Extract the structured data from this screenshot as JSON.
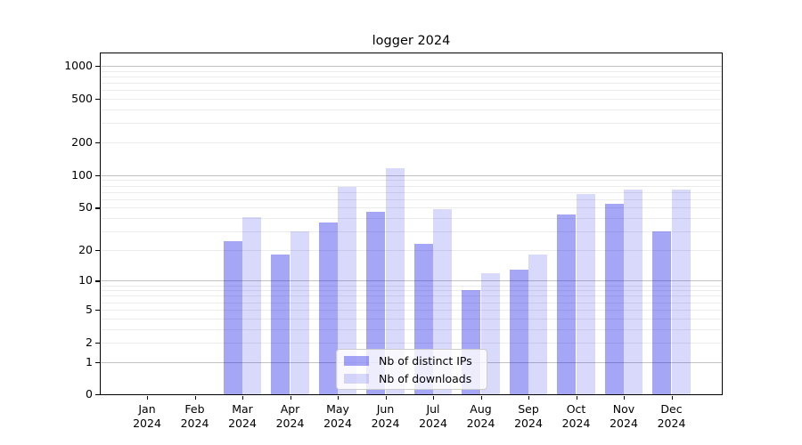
{
  "title": "logger 2024",
  "chart_data": {
    "type": "bar",
    "title": "logger 2024",
    "categories": [
      "Jan",
      "Feb",
      "Mar",
      "Apr",
      "May",
      "Jun",
      "Jul",
      "Aug",
      "Sep",
      "Oct",
      "Nov",
      "Dec"
    ],
    "category_sublabel": "2024",
    "series": [
      {
        "name": "Nb of distinct IPs",
        "color": "rgba(0,0,230,0.35)",
        "values": [
          0,
          0,
          24,
          18,
          36,
          46,
          23,
          8,
          13,
          43,
          54,
          30
        ]
      },
      {
        "name": "Nb of downloads",
        "color": "rgba(0,0,230,0.15)",
        "values": [
          0,
          0,
          41,
          30,
          78,
          116,
          48,
          12,
          18,
          67,
          74,
          73
        ]
      }
    ],
    "yscale": "log1p",
    "y_ticks": [
      0,
      1,
      2,
      5,
      10,
      20,
      50,
      100,
      200,
      500,
      1000
    ],
    "ylim": [
      0,
      1300
    ],
    "grid": true,
    "grid_minor_color": "#ececec",
    "grid_major_color": "#c3c3c3",
    "legend_position": "lower center"
  }
}
